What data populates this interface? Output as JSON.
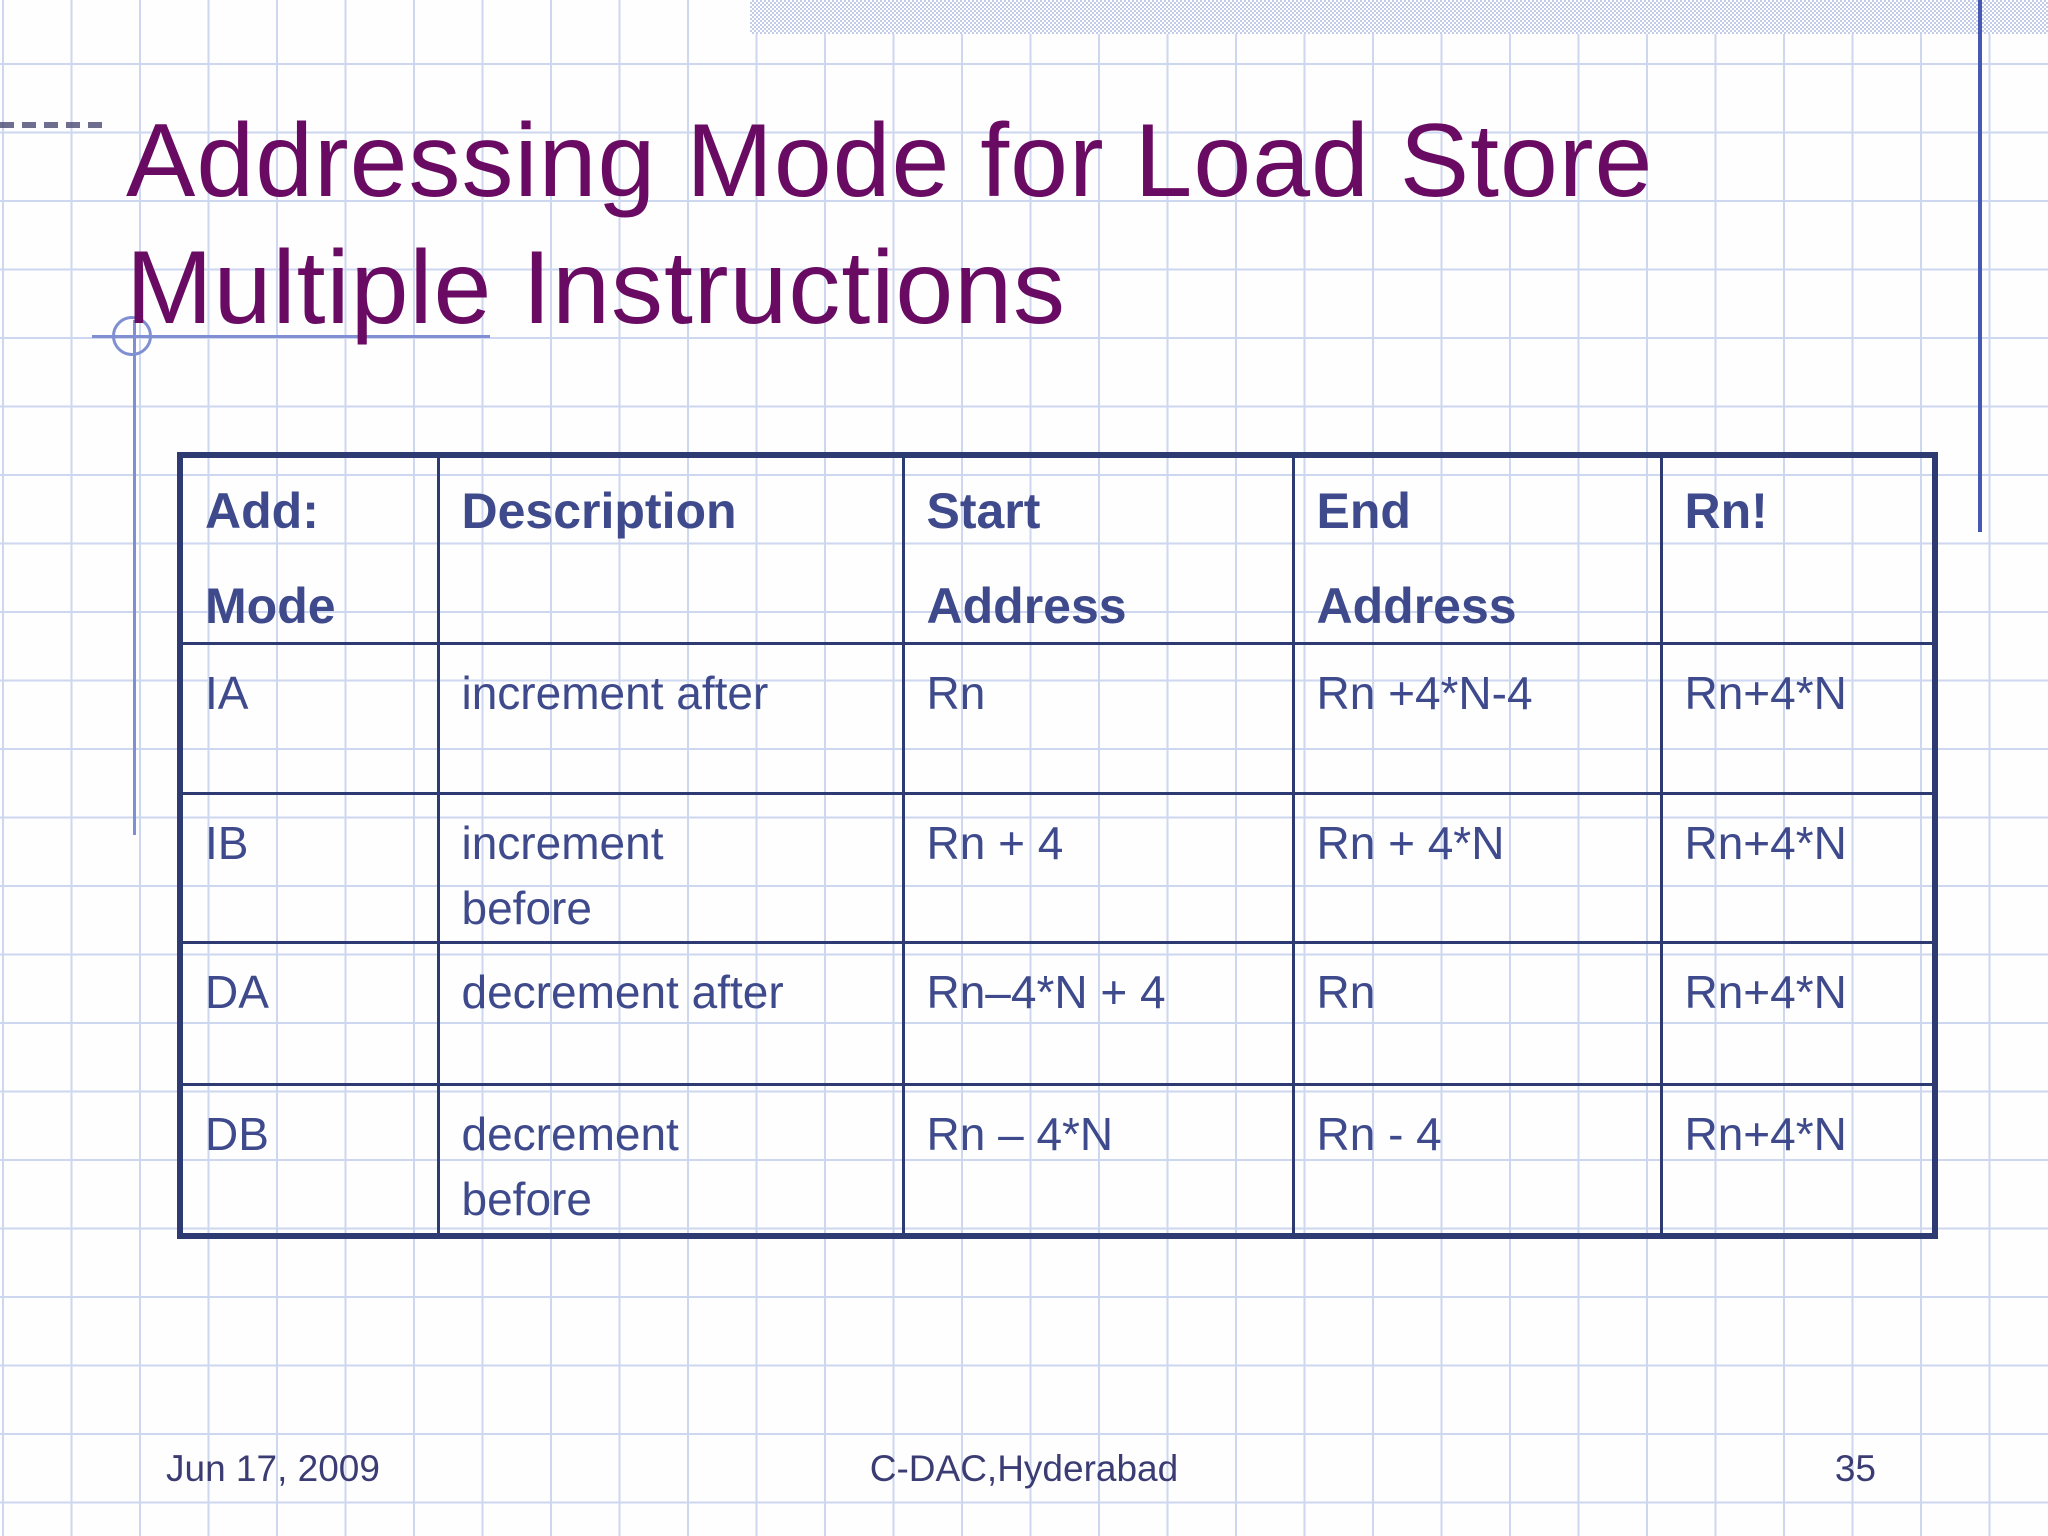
{
  "title": {
    "line1": "Addressing Mode for Load Store",
    "line2": "Multiple Instructions"
  },
  "table": {
    "columns": [
      {
        "label_line1": "Add:",
        "label_line2": "Mode"
      },
      {
        "label_line1": "Description",
        "label_line2": ""
      },
      {
        "label_line1": "Start",
        "label_line2": "Address"
      },
      {
        "label_line1": "End",
        "label_line2": "Address"
      },
      {
        "label_line1": "Rn!",
        "label_line2": ""
      }
    ],
    "rows": [
      {
        "mode": "IA",
        "description": "increment after",
        "start": "Rn",
        "end": "Rn +4*N-4",
        "rn": "Rn+4*N"
      },
      {
        "mode": "IB",
        "description": "increment\nbefore",
        "start": "Rn + 4",
        "end": "Rn + 4*N",
        "rn": "Rn+4*N"
      },
      {
        "mode": "DA",
        "description": "decrement after",
        "start": "Rn–4*N + 4",
        "end": "Rn",
        "rn": "Rn+4*N"
      },
      {
        "mode": "DB",
        "description": "decrement\nbefore",
        "start": "Rn – 4*N",
        "end": "Rn - 4",
        "rn": "Rn+4*N"
      }
    ]
  },
  "footer": {
    "date": "Jun 17, 2009",
    "organization": "C-DAC,Hyderabad",
    "page_number": "35"
  },
  "colors": {
    "title_text": "#6a0b63",
    "table_text": "#3e4a8c",
    "table_border": "#2e3a72",
    "grid_line": "#cdd7f0",
    "accent_line": "#4758b2",
    "compass_line": "#7f8fd2",
    "footer_text": "#3c3c74",
    "background": "#fdfefd"
  }
}
